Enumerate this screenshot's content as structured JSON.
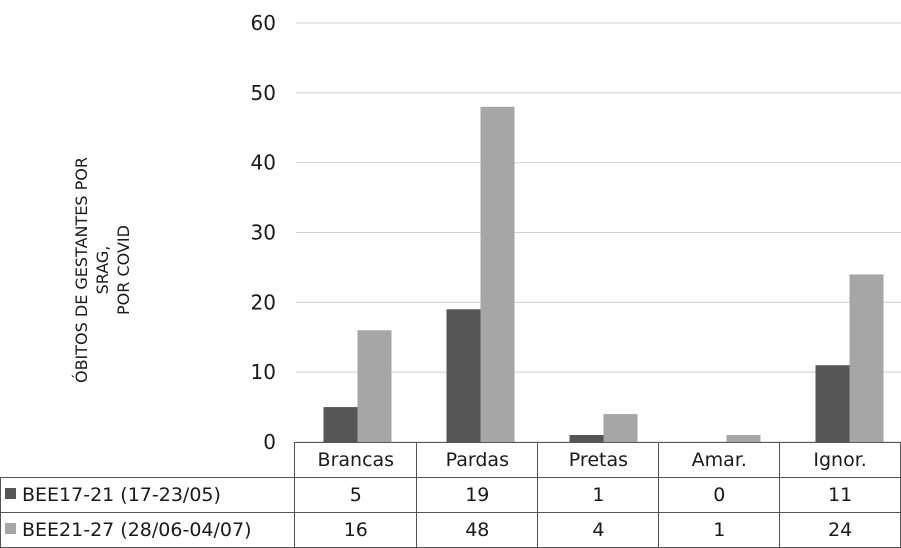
{
  "chart_data": {
    "type": "bar",
    "ylabel_lines": [
      "ÓBITOS DE GESTANTES POR SRAG,",
      "POR COVID"
    ],
    "categories": [
      "Brancas",
      "Pardas",
      "Pretas",
      "Amar.",
      "Ignor."
    ],
    "series": [
      {
        "name": "BEE17-21 (17-23/05)",
        "values": [
          5,
          19,
          1,
          0,
          11
        ],
        "color": "#555555"
      },
      {
        "name": "BEE21-27 (28/06-04/07)",
        "values": [
          16,
          48,
          4,
          1,
          24
        ],
        "color": "#a6a6a6"
      }
    ],
    "ylim": [
      0,
      60
    ],
    "yticks": [
      0,
      10,
      20,
      30,
      40,
      50,
      60
    ],
    "grid": true,
    "legend": "data-table"
  }
}
